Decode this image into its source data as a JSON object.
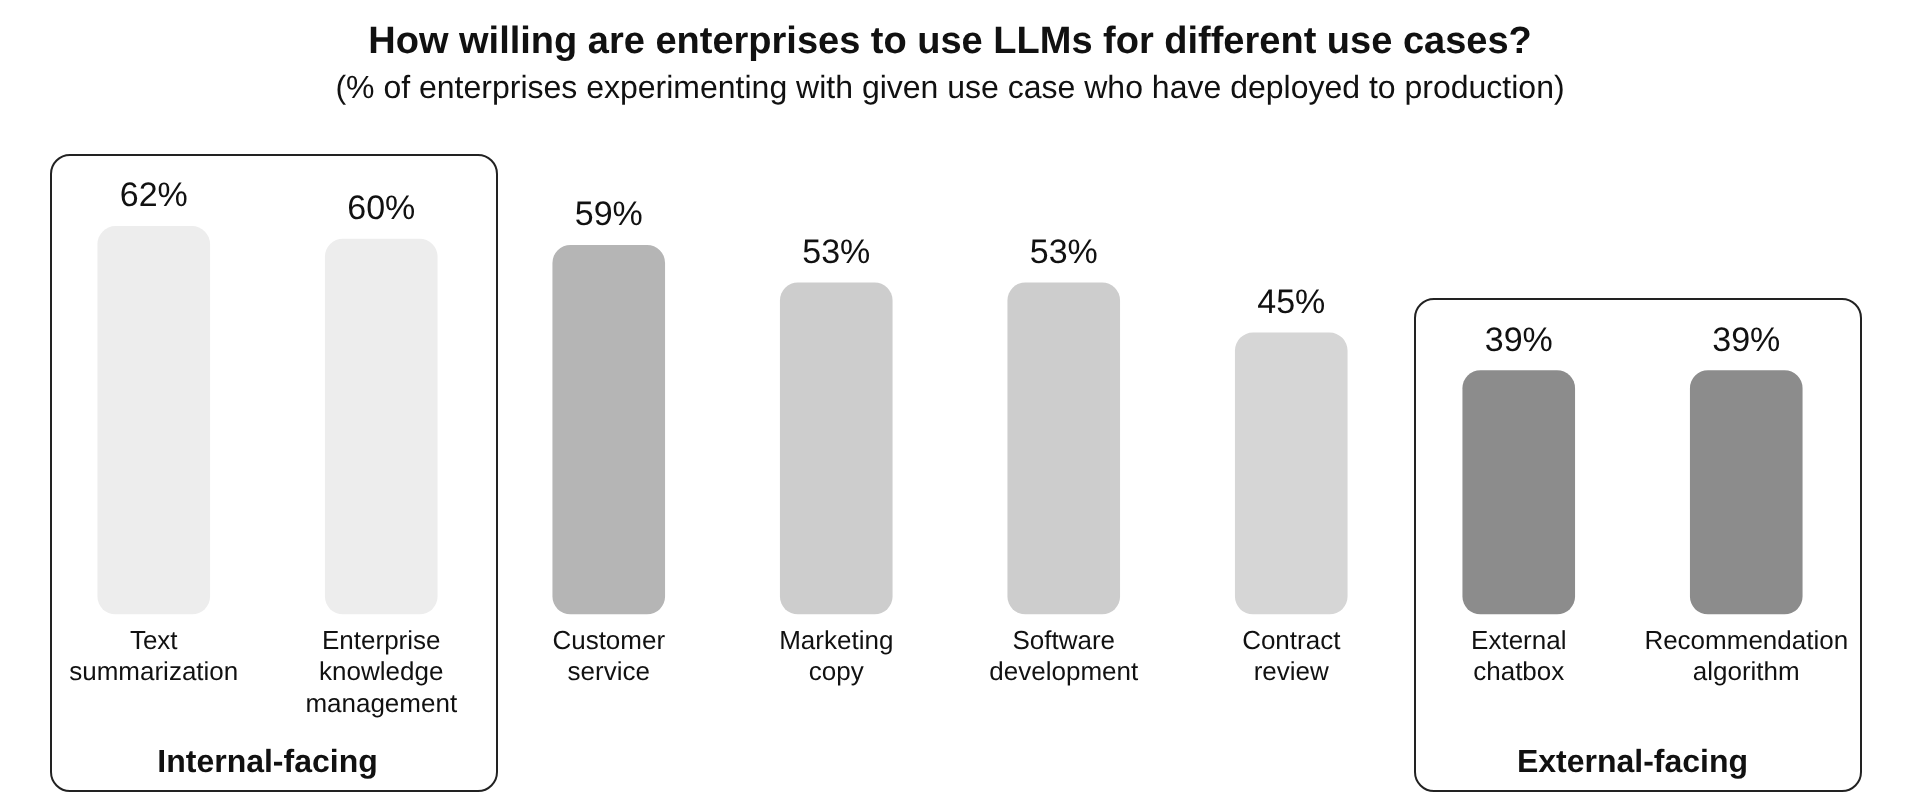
{
  "chart_data": {
    "type": "bar",
    "title": "How willing are enterprises to use LLMs for different use cases?",
    "subtitle": "(% of enterprises experimenting with given use case who have deployed to production)",
    "categories": [
      "Text summarization",
      "Enterprise knowledge management",
      "Customer service",
      "Marketing copy",
      "Software development",
      "Contract review",
      "External chatbox",
      "Recommendation algorithm"
    ],
    "values": [
      62,
      60,
      59,
      53,
      53,
      45,
      39,
      39
    ],
    "colors": [
      "#ededed",
      "#ededed",
      "#b5b5b5",
      "#cdcdcd",
      "#cdcdcd",
      "#d6d6d6",
      "#8c8c8c",
      "#8c8c8c"
    ],
    "value_labels": [
      "62%",
      "60%",
      "59%",
      "53%",
      "53%",
      "45%",
      "39%",
      "39%"
    ],
    "annotations": [
      "Internal-facing",
      "External-facing"
    ],
    "grid": false,
    "legend": false,
    "tick_labels": "x"
  }
}
